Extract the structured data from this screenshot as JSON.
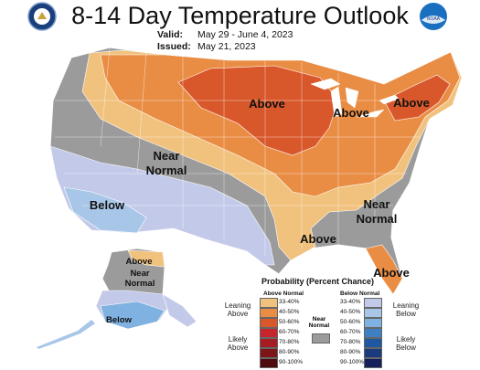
{
  "header": {
    "title": "8-14 Day Temperature Outlook",
    "valid_label": "Valid:",
    "valid_value": "May 29 - June 4, 2023",
    "issued_label": "Issued:",
    "issued_value": "May 21, 2023"
  },
  "logos": {
    "left": "doc-seal",
    "right": "noaa-logo",
    "right_text": "NOAA"
  },
  "map_labels": {
    "above_plains": "Above",
    "above_lakes": "Above",
    "above_northeast": "Above",
    "near_west": [
      "Near",
      "Normal"
    ],
    "below_southwest": "Below",
    "near_southeast": [
      "Near",
      "Normal"
    ],
    "above_gulf": "Above",
    "above_florida": "Above",
    "alaska_above": "Above",
    "alaska_near": [
      "Near",
      "Normal"
    ],
    "alaska_below": "Below"
  },
  "legend": {
    "title": "Probability (Percent Chance)",
    "above_header": "Above Normal",
    "below_header": "Below Normal",
    "near_header": [
      "Near",
      "Normal"
    ],
    "leaning_above": [
      "Leaning",
      "Above"
    ],
    "likely_above": [
      "Likely",
      "Above"
    ],
    "leaning_below": [
      "Leaning",
      "Below"
    ],
    "likely_below": [
      "Likely",
      "Below"
    ],
    "above": [
      {
        "range": "33-40%",
        "color": "#f1c27d"
      },
      {
        "range": "40-50%",
        "color": "#e98d45"
      },
      {
        "range": "50-60%",
        "color": "#d9582b"
      },
      {
        "range": "60-70%",
        "color": "#c7242b"
      },
      {
        "range": "70-80%",
        "color": "#a51c22"
      },
      {
        "range": "80-90%",
        "color": "#7d1418"
      },
      {
        "range": "90-100%",
        "color": "#4f0c0f"
      }
    ],
    "below": [
      {
        "range": "33-40%",
        "color": "#c3cae9"
      },
      {
        "range": "40-50%",
        "color": "#a8c7e8"
      },
      {
        "range": "50-60%",
        "color": "#7fb1e1"
      },
      {
        "range": "60-70%",
        "color": "#3f7fc4"
      },
      {
        "range": "70-80%",
        "color": "#1f57a3"
      },
      {
        "range": "80-90%",
        "color": "#1a3c7f"
      },
      {
        "range": "90-100%",
        "color": "#151f5a"
      }
    ],
    "near_color": "#9b9b9b"
  }
}
